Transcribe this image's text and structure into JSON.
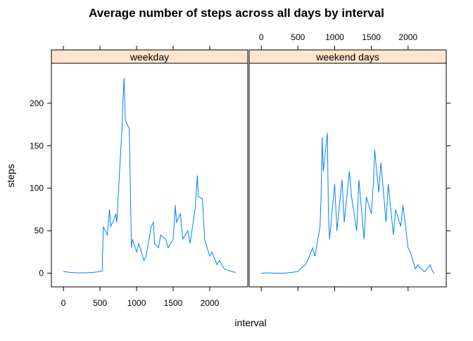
{
  "chart_data": {
    "type": "line",
    "title": "Average number of steps across all days by interval",
    "xlabel": "interval",
    "ylabel": "steps",
    "xlim": [
      -165,
      2520
    ],
    "ylim": [
      -16,
      247
    ],
    "xticks": [
      0,
      500,
      1000,
      1500,
      2000
    ],
    "yticks": [
      0,
      50,
      100,
      150,
      200
    ],
    "color": "#0080ff",
    "strip_color": "#ffe5cc",
    "series": [
      {
        "name": "weekday",
        "x": [
          0,
          100,
          200,
          300,
          400,
          500,
          530,
          545,
          600,
          615,
          630,
          645,
          700,
          715,
          730,
          745,
          800,
          815,
          830,
          845,
          900,
          915,
          930,
          945,
          1000,
          1030,
          1100,
          1130,
          1200,
          1230,
          1245,
          1300,
          1330,
          1400,
          1430,
          1500,
          1530,
          1545,
          1600,
          1630,
          1700,
          1730,
          1800,
          1830,
          1845,
          1900,
          1930,
          2000,
          2030,
          2100,
          2130,
          2200,
          2300,
          2355
        ],
        "values": [
          2,
          1,
          0.5,
          0.5,
          1,
          2,
          3,
          55,
          45,
          60,
          75,
          55,
          65,
          70,
          60,
          85,
          170,
          205,
          230,
          180,
          170,
          100,
          30,
          40,
          25,
          35,
          15,
          20,
          55,
          60,
          35,
          30,
          45,
          40,
          30,
          40,
          80,
          60,
          70,
          40,
          50,
          35,
          75,
          115,
          90,
          88,
          40,
          20,
          25,
          10,
          15,
          5,
          2,
          1
        ]
      },
      {
        "name": "weekend days",
        "x": [
          0,
          100,
          200,
          300,
          400,
          500,
          530,
          600,
          630,
          700,
          730,
          800,
          815,
          830,
          845,
          900,
          915,
          930,
          1000,
          1030,
          1100,
          1130,
          1200,
          1230,
          1300,
          1330,
          1400,
          1430,
          1500,
          1530,
          1545,
          1600,
          1630,
          1700,
          1730,
          1800,
          1830,
          1900,
          1930,
          2000,
          2030,
          2100,
          2130,
          2200,
          2230,
          2300,
          2330,
          2355
        ],
        "values": [
          0,
          0.5,
          0,
          0,
          1,
          2,
          5,
          10,
          15,
          30,
          20,
          55,
          90,
          160,
          120,
          165,
          70,
          40,
          105,
          50,
          110,
          60,
          120,
          90,
          50,
          110,
          40,
          90,
          70,
          110,
          145,
          95,
          130,
          60,
          105,
          45,
          75,
          55,
          80,
          30,
          25,
          5,
          10,
          3,
          2,
          10,
          3,
          0
        ]
      }
    ]
  }
}
